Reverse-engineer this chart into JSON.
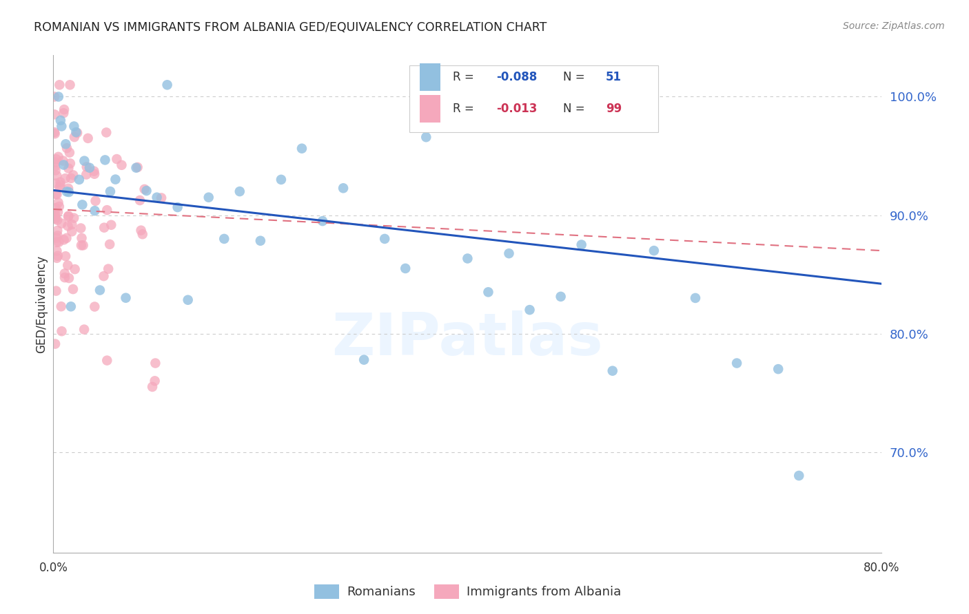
{
  "title": "ROMANIAN VS IMMIGRANTS FROM ALBANIA GED/EQUIVALENCY CORRELATION CHART",
  "source": "Source: ZipAtlas.com",
  "ylabel": "GED/Equivalency",
  "yticks": [
    0.7,
    0.8,
    0.9,
    1.0
  ],
  "ytick_labels": [
    "70.0%",
    "80.0%",
    "90.0%",
    "100.0%"
  ],
  "xlim": [
    0.0,
    0.8
  ],
  "ylim": [
    0.615,
    1.035
  ],
  "romanians_R": -0.088,
  "romanians_N": 51,
  "albanians_R": -0.013,
  "albanians_N": 99,
  "blue_color": "#92C0E0",
  "pink_color": "#F5A8BC",
  "trend_blue": "#2255BB",
  "trend_pink": "#E07080",
  "legend_label_blue": "Romanians",
  "legend_label_pink": "Immigrants from Albania",
  "blue_trend_x0": 0.0,
  "blue_trend_y0": 0.921,
  "blue_trend_x1": 0.8,
  "blue_trend_y1": 0.842,
  "pink_trend_x0": 0.0,
  "pink_trend_y0": 0.905,
  "pink_trend_x1": 0.8,
  "pink_trend_y1": 0.87
}
